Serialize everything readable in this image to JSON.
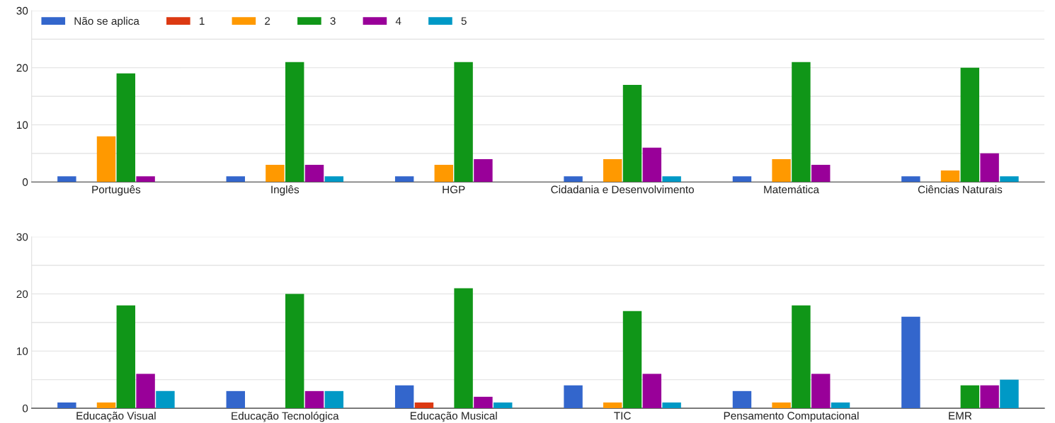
{
  "chart_data": [
    {
      "type": "bar",
      "categories": [
        "Português",
        "Inglês",
        "HGP",
        "Cidadania e Desenvolvimento",
        "Matemática",
        "Ciências Naturais"
      ],
      "series": [
        {
          "name": "Não se aplica",
          "color": "#3366cc",
          "values": [
            1,
            1,
            1,
            1,
            1,
            1
          ]
        },
        {
          "name": "1",
          "color": "#dc3912",
          "values": [
            0,
            0,
            0,
            0,
            0,
            0
          ]
        },
        {
          "name": "2",
          "color": "#ff9900",
          "values": [
            8,
            3,
            3,
            4,
            4,
            2
          ]
        },
        {
          "name": "3",
          "color": "#109618",
          "values": [
            19,
            21,
            21,
            17,
            21,
            20
          ]
        },
        {
          "name": "4",
          "color": "#990099",
          "values": [
            1,
            3,
            4,
            6,
            3,
            5
          ]
        },
        {
          "name": "5",
          "color": "#0099c6",
          "values": [
            0,
            1,
            0,
            1,
            0,
            1
          ]
        }
      ],
      "ylim": [
        0,
        30
      ],
      "yticks": [
        0,
        {
          "value": 5,
          "label": null
        },
        10,
        {
          "value": 15,
          "label": null
        },
        20,
        {
          "value": 25,
          "label": null
        },
        30
      ],
      "grid": "y",
      "legend": "top left"
    },
    {
      "type": "bar",
      "categories": [
        "Educação Visual",
        "Educação Tecnológica",
        "Educação Musical",
        "TIC",
        "Pensamento Computacional",
        "EMR"
      ],
      "series": [
        {
          "color": "#3366cc",
          "values": [
            1,
            3,
            4,
            4,
            3,
            16
          ]
        },
        {
          "color": "#dc3912",
          "values": [
            0,
            0,
            1,
            0,
            0,
            0
          ]
        },
        {
          "color": "#ff9900",
          "values": [
            1,
            0,
            0,
            1,
            1,
            0
          ]
        },
        {
          "color": "#109618",
          "values": [
            18,
            20,
            21,
            17,
            18,
            4
          ]
        },
        {
          "color": "#990099",
          "values": [
            6,
            3,
            2,
            6,
            6,
            4
          ]
        },
        {
          "color": "#0099c6",
          "values": [
            3,
            3,
            1,
            1,
            1,
            5
          ]
        }
      ],
      "ylim": [
        0,
        30
      ],
      "yticks": [
        0,
        {
          "value": 5,
          "label": null
        },
        10,
        {
          "value": 15,
          "label": null
        },
        20,
        {
          "value": 25,
          "label": null
        },
        30
      ],
      "grid": "y",
      "legend": false
    }
  ]
}
